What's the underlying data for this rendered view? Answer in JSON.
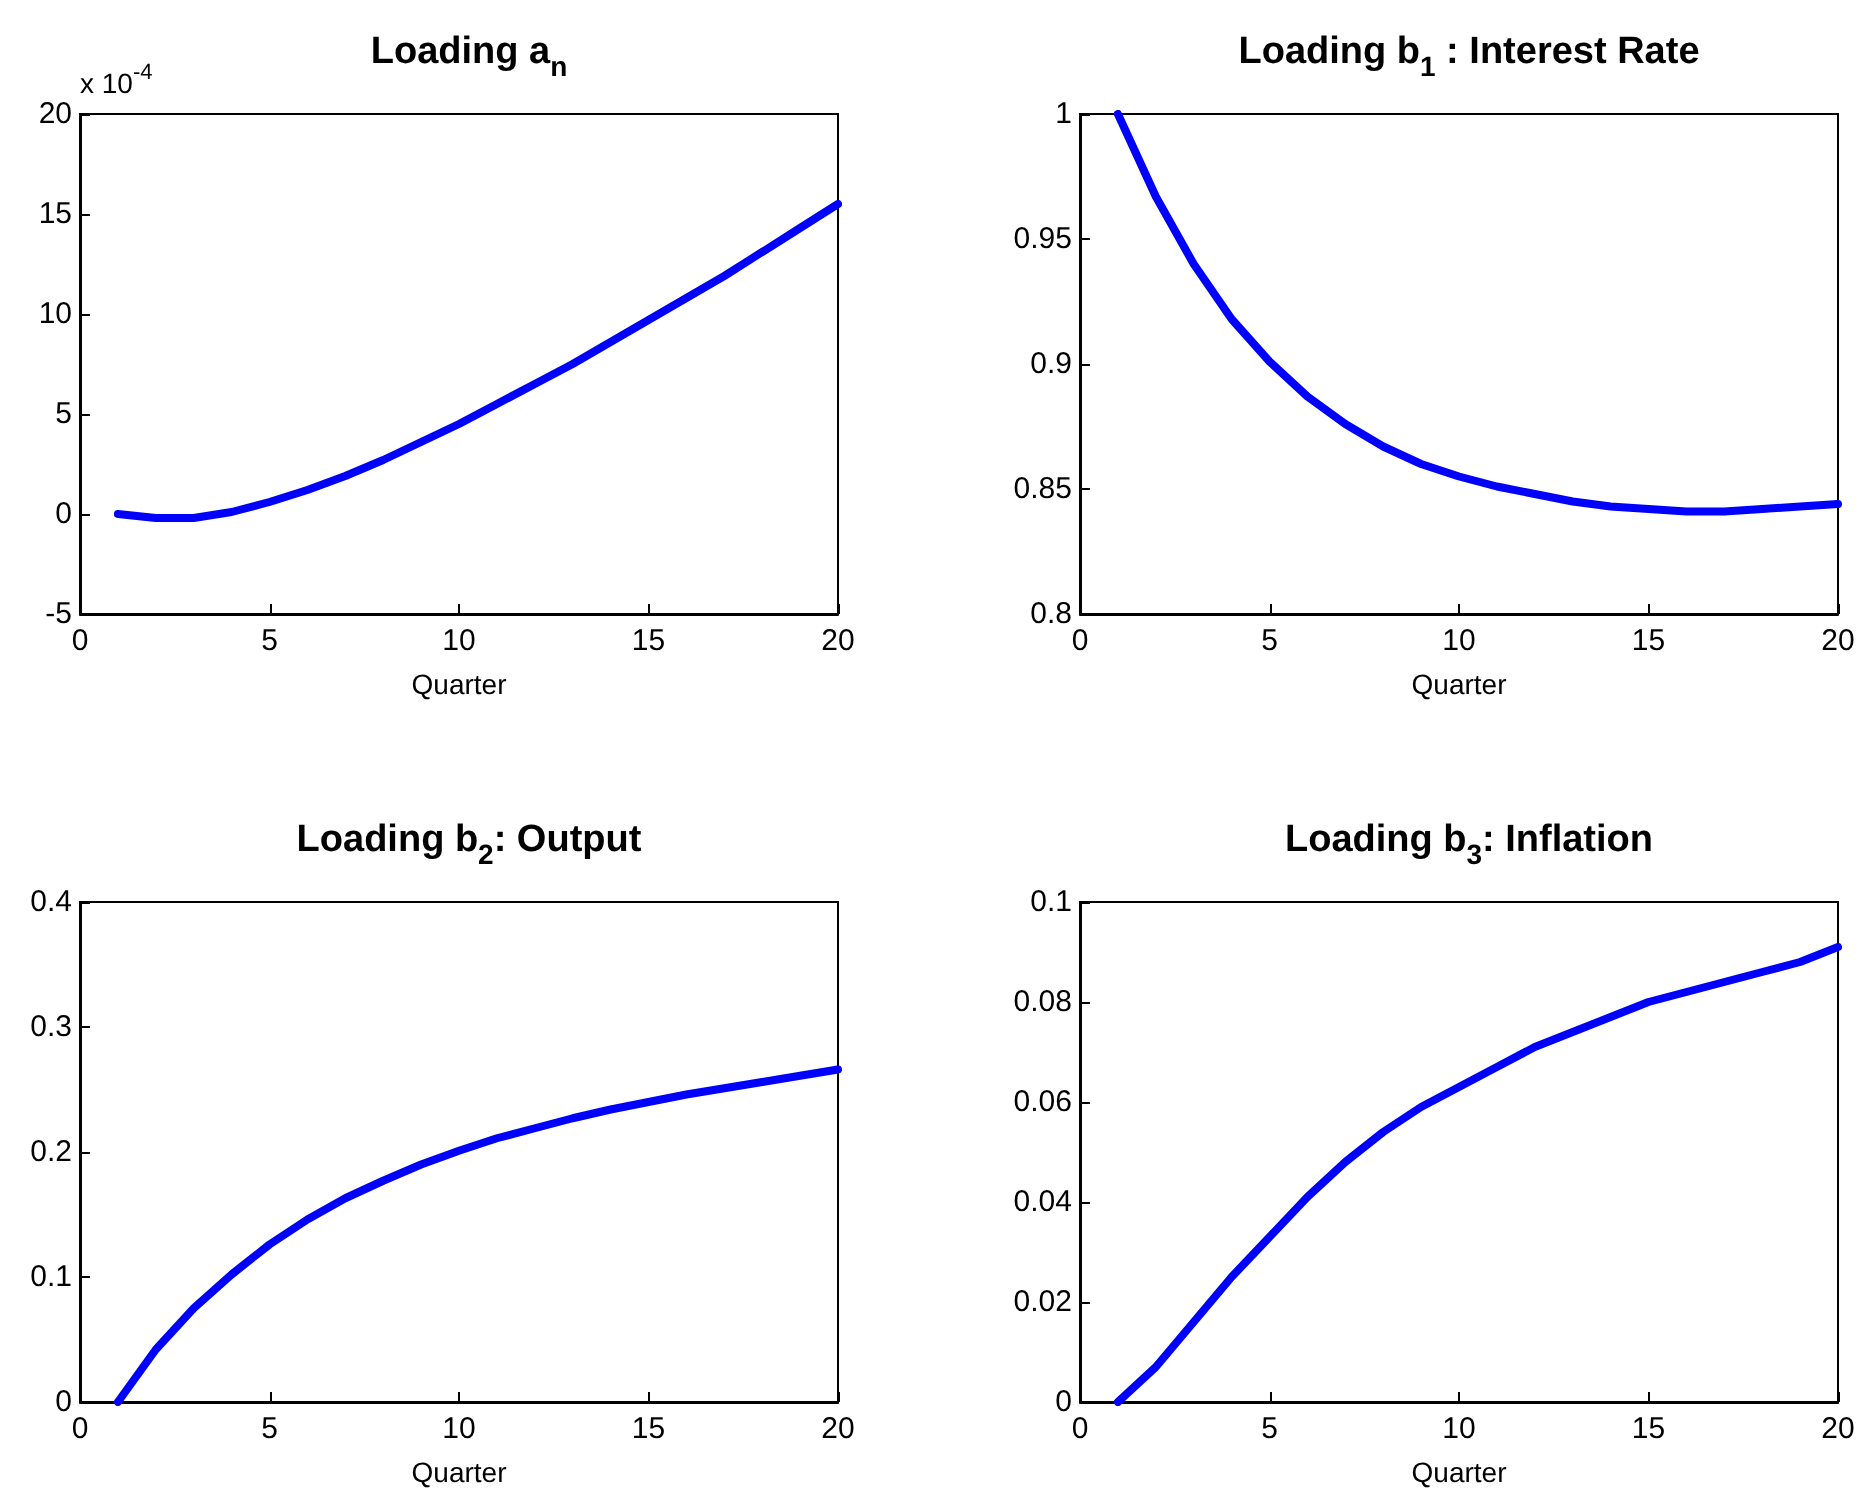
{
  "chart_data": [
    {
      "type": "line",
      "title": "Loading a$_{n}$",
      "xlabel": "Quarter",
      "annotations": [
        "x 10$^{-4}$"
      ],
      "x": [
        1,
        2,
        3,
        4,
        5,
        6,
        7,
        8,
        9,
        10,
        11,
        12,
        13,
        14,
        15,
        16,
        17,
        18,
        19,
        20
      ],
      "xlim": [
        0,
        20
      ],
      "xticks": [
        0,
        5,
        10,
        15,
        20
      ],
      "ylim": [
        -5,
        20
      ],
      "yticks": [
        -5,
        0,
        5,
        10,
        15,
        20
      ],
      "grid": false,
      "marker": "none",
      "line_style": "solid",
      "series": [
        {
          "color": "#0000ff",
          "values": [
            0,
            -0.2,
            -0.2,
            0.1,
            0.6,
            1.2,
            1.9,
            2.7,
            3.6,
            4.5,
            5.5,
            6.5,
            7.5,
            8.6,
            9.7,
            10.8,
            11.9,
            13.1,
            14.3,
            15.5
          ]
        }
      ]
    },
    {
      "type": "line",
      "title": "Loading b$_{1}$ : Interest Rate",
      "xlabel": "Quarter",
      "x": [
        1,
        2,
        3,
        4,
        5,
        6,
        7,
        8,
        9,
        10,
        11,
        12,
        13,
        14,
        15,
        16,
        17,
        18,
        19,
        20
      ],
      "xlim": [
        0,
        20
      ],
      "xticks": [
        0,
        5,
        10,
        15,
        20
      ],
      "ylim": [
        0.8,
        1
      ],
      "yticks": [
        0.8,
        0.85,
        0.9,
        0.95,
        1
      ],
      "grid": false,
      "marker": "none",
      "line_style": "solid",
      "series": [
        {
          "color": "#0000ff",
          "values": [
            1.0,
            0.967,
            0.94,
            0.918,
            0.901,
            0.887,
            0.876,
            0.867,
            0.86,
            0.855,
            0.851,
            0.848,
            0.845,
            0.843,
            0.842,
            0.841,
            0.841,
            0.842,
            0.843,
            0.844
          ]
        }
      ]
    },
    {
      "type": "line",
      "title": "Loading b$_{2}$: Output",
      "xlabel": "Quarter",
      "x": [
        1,
        2,
        3,
        4,
        5,
        6,
        7,
        8,
        9,
        10,
        11,
        12,
        13,
        14,
        15,
        16,
        17,
        18,
        19,
        20
      ],
      "xlim": [
        0,
        20
      ],
      "xticks": [
        0,
        5,
        10,
        15,
        20
      ],
      "ylim": [
        0,
        0.4
      ],
      "yticks": [
        0,
        0.1,
        0.2,
        0.3,
        0.4
      ],
      "grid": false,
      "marker": "none",
      "line_style": "solid",
      "series": [
        {
          "color": "#0000ff",
          "values": [
            0,
            0.042,
            0.075,
            0.102,
            0.126,
            0.146,
            0.163,
            0.177,
            0.19,
            0.201,
            0.211,
            0.219,
            0.227,
            0.234,
            0.24,
            0.246,
            0.251,
            0.256,
            0.261,
            0.266
          ]
        }
      ]
    },
    {
      "type": "line",
      "title": "Loading b$_{3}$: Inflation",
      "xlabel": "Quarter",
      "x": [
        1,
        2,
        3,
        4,
        5,
        6,
        7,
        8,
        9,
        10,
        11,
        12,
        13,
        14,
        15,
        16,
        17,
        18,
        19,
        20
      ],
      "xlim": [
        0,
        20
      ],
      "xticks": [
        0,
        5,
        10,
        15,
        20
      ],
      "ylim": [
        0,
        0.1
      ],
      "yticks": [
        0,
        0.02,
        0.04,
        0.06,
        0.08,
        0.1
      ],
      "grid": false,
      "marker": "none",
      "line_style": "solid",
      "series": [
        {
          "color": "#0000ff",
          "values": [
            0,
            0.007,
            0.016,
            0.025,
            0.033,
            0.041,
            0.048,
            0.054,
            0.059,
            0.063,
            0.067,
            0.071,
            0.074,
            0.077,
            0.08,
            0.082,
            0.084,
            0.086,
            0.088,
            0.091
          ]
        }
      ]
    }
  ]
}
